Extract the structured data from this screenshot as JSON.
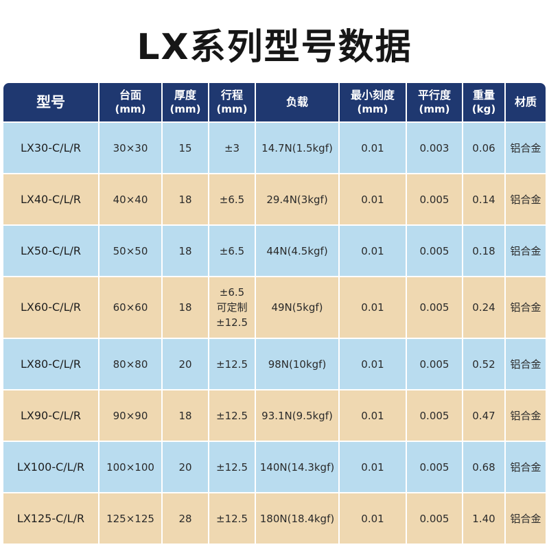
{
  "title": "LX系列型号数据",
  "colors": {
    "header_bg": "#1f3870",
    "row_blue": "#b9dcef",
    "row_tan": "#efd8b1"
  },
  "headers": [
    {
      "line1": "型号",
      "line2": ""
    },
    {
      "line1": "台面",
      "line2": "(mm)"
    },
    {
      "line1": "厚度",
      "line2": "(mm)"
    },
    {
      "line1": "行程",
      "line2": "(mm)"
    },
    {
      "line1": "负载",
      "line2": ""
    },
    {
      "line1": "最小刻度",
      "line2": "(mm)"
    },
    {
      "line1": "平行度",
      "line2": "(mm)"
    },
    {
      "line1": "重量",
      "line2": "(kg)"
    },
    {
      "line1": "材质",
      "line2": ""
    }
  ],
  "rows": [
    {
      "model": "LX30-C/L/R",
      "table": "30×30",
      "thickness": "15",
      "stroke": [
        "±3"
      ],
      "load": "14.7N(1.5kgf)",
      "min_scale": "0.01",
      "parallelism": "0.003",
      "weight": "0.06",
      "material": "铝合金"
    },
    {
      "model": "LX40-C/L/R",
      "table": "40×40",
      "thickness": "18",
      "stroke": [
        "±6.5"
      ],
      "load": "29.4N(3kgf)",
      "min_scale": "0.01",
      "parallelism": "0.005",
      "weight": "0.14",
      "material": "铝合金"
    },
    {
      "model": "LX50-C/L/R",
      "table": "50×50",
      "thickness": "18",
      "stroke": [
        "±6.5"
      ],
      "load": "44N(4.5kgf)",
      "min_scale": "0.01",
      "parallelism": "0.005",
      "weight": "0.18",
      "material": "铝合金"
    },
    {
      "model": "LX60-C/L/R",
      "table": "60×60",
      "thickness": "18",
      "stroke": [
        "±6.5",
        "可定制",
        "±12.5"
      ],
      "load": "49N(5kgf)",
      "min_scale": "0.01",
      "parallelism": "0.005",
      "weight": "0.24",
      "material": "铝合金"
    },
    {
      "model": "LX80-C/L/R",
      "table": "80×80",
      "thickness": "20",
      "stroke": [
        "±12.5"
      ],
      "load": "98N(10kgf)",
      "min_scale": "0.01",
      "parallelism": "0.005",
      "weight": "0.52",
      "material": "铝合金"
    },
    {
      "model": "LX90-C/L/R",
      "table": "90×90",
      "thickness": "18",
      "stroke": [
        "±12.5"
      ],
      "load": "93.1N(9.5kgf)",
      "min_scale": "0.01",
      "parallelism": "0.005",
      "weight": "0.47",
      "material": "铝合金"
    },
    {
      "model": "LX100-C/L/R",
      "table": "100×100",
      "thickness": "20",
      "stroke": [
        "±12.5"
      ],
      "load": "140N(14.3kgf)",
      "min_scale": "0.01",
      "parallelism": "0.005",
      "weight": "0.68",
      "material": "铝合金"
    },
    {
      "model": "LX125-C/L/R",
      "table": "125×125",
      "thickness": "28",
      "stroke": [
        "±12.5"
      ],
      "load": "180N(18.4kgf)",
      "min_scale": "0.01",
      "parallelism": "0.005",
      "weight": "1.40",
      "material": "铝合金"
    }
  ]
}
